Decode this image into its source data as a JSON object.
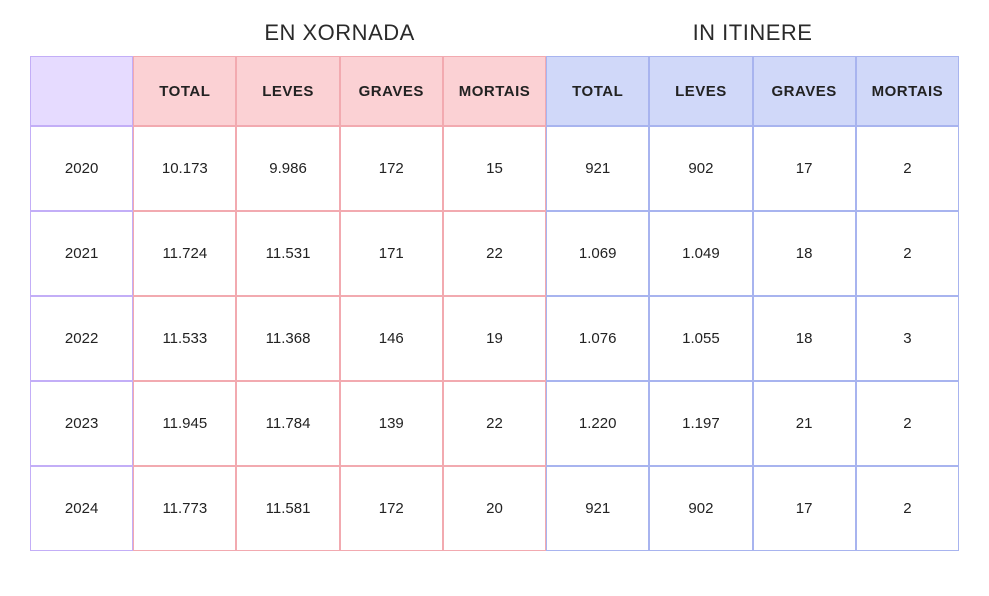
{
  "sections": {
    "xornada_title": "EN XORNADA",
    "itinere_title": "IN ITINERE"
  },
  "columns": {
    "year_blank": "",
    "xornada": [
      "TOTAL",
      "LEVES",
      "GRAVES",
      "MORTAIS"
    ],
    "itinere": [
      "TOTAL",
      "LEVES",
      "GRAVES",
      "MORTAIS"
    ]
  },
  "rows": [
    {
      "year": "2020",
      "x": [
        "10.173",
        "9.986",
        "172",
        "15"
      ],
      "i": [
        "921",
        "902",
        "17",
        "2"
      ]
    },
    {
      "year": "2021",
      "x": [
        "11.724",
        "11.531",
        "171",
        "22"
      ],
      "i": [
        "1.069",
        "1.049",
        "18",
        "2"
      ]
    },
    {
      "year": "2022",
      "x": [
        "11.533",
        "11.368",
        "146",
        "19"
      ],
      "i": [
        "1.076",
        "1.055",
        "18",
        "3"
      ]
    },
    {
      "year": "2023",
      "x": [
        "11.945",
        "11.784",
        "139",
        "22"
      ],
      "i": [
        "1.220",
        "1.197",
        "21",
        "2"
      ]
    },
    {
      "year": "2024",
      "x": [
        "11.773",
        "11.581",
        "172",
        "20"
      ],
      "i": [
        "921",
        "902",
        "17",
        "2"
      ]
    }
  ],
  "style": {
    "year_border": "#c3aef7",
    "year_header_bg": "#e6dbff",
    "xornada_border": "#f2aab0",
    "xornada_header_bg": "#fbd1d4",
    "itinere_border": "#a8b4ef",
    "itinere_header_bg": "#d0d8f9",
    "cell_bg": "#ffffff",
    "text_color": "#2a2a2a",
    "header_fontsize_pt": 11,
    "section_title_fontsize_pt": 16
  }
}
